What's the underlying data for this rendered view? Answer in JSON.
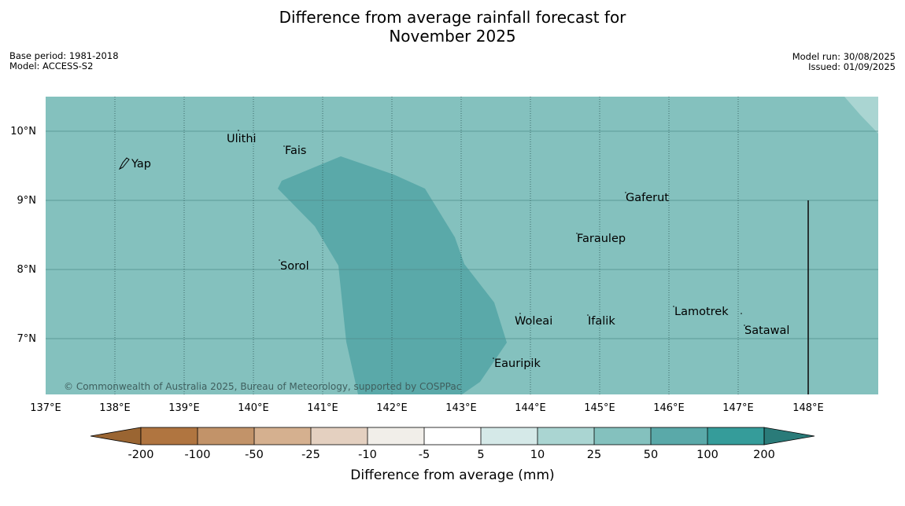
{
  "title_line1": "Difference from average rainfall forecast for",
  "title_line2": "November 2025",
  "base_period": "Base period: 1981-2018",
  "model": "Model: ACCESS-S2",
  "model_run": "Model run: 30/08/2025",
  "issued": "Issued: 01/09/2025",
  "copyright": "© Commonwealth of Australia 2025, Bureau of Meteorology, supported by COSPPac",
  "map": {
    "lon_ticks": [
      "137°E",
      "138°E",
      "139°E",
      "140°E",
      "141°E",
      "142°E",
      "143°E",
      "144°E",
      "145°E",
      "146°E",
      "147°E",
      "148°E"
    ],
    "lat_ticks": [
      "10°N",
      "9°N",
      "8°N",
      "7°N"
    ],
    "places": [
      {
        "name": "Yap"
      },
      {
        "name": "Ulithi"
      },
      {
        "name": "Fais"
      },
      {
        "name": "Gaferut"
      },
      {
        "name": "Faraulep"
      },
      {
        "name": "Sorol"
      },
      {
        "name": "Woleai"
      },
      {
        "name": "Ifalik"
      },
      {
        "name": "Lamotrek"
      },
      {
        "name": "Satawal"
      },
      {
        "name": "Eauripik"
      }
    ],
    "colors": {
      "background_class": "#84c1be",
      "inner_class": "#5aa9a9",
      "corner_class": "#aad5d2"
    }
  },
  "legend": {
    "title": "Difference from average (mm)",
    "tick_labels": [
      "-200",
      "-100",
      "-50",
      "-25",
      "-10",
      "-5",
      "5",
      "10",
      "25",
      "50",
      "100",
      "200"
    ],
    "colors": [
      "#9a6532",
      "#b07540",
      "#c29369",
      "#d5b08f",
      "#e4d0c0",
      "#f1eee9",
      "#ffffff",
      "#d5e9e8",
      "#aad5d2",
      "#84c1be",
      "#5aa9a9",
      "#359c9a",
      "#2a7b79"
    ]
  }
}
